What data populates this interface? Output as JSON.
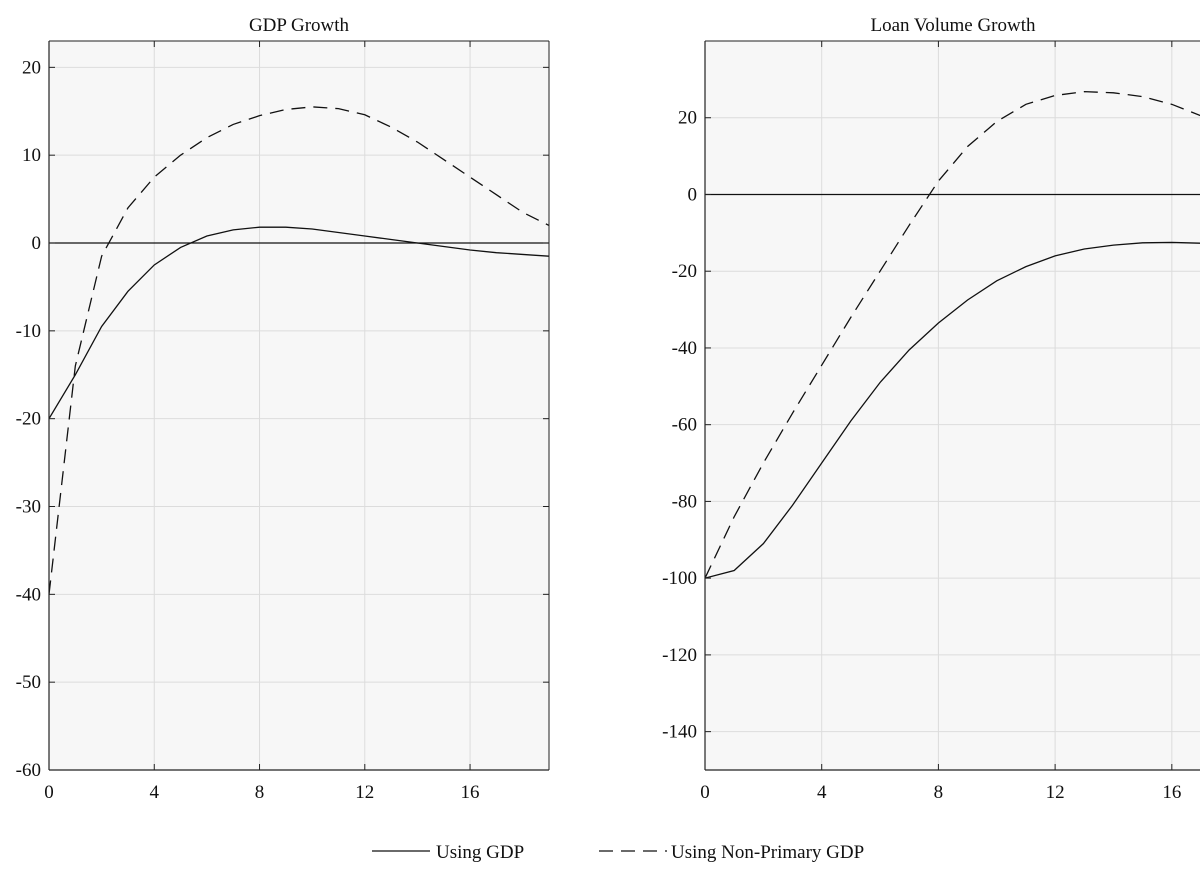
{
  "chart_data": [
    {
      "type": "line",
      "title": "GDP Growth",
      "xlabel": "",
      "ylabel": "",
      "xlim": [
        0,
        19
      ],
      "ylim": [
        -60,
        23
      ],
      "xticks": [
        0,
        4,
        8,
        12,
        16
      ],
      "yticks": [
        -60,
        -50,
        -40,
        -30,
        -20,
        -10,
        0,
        10,
        20
      ],
      "grid": true,
      "reference_line": 0,
      "series": [
        {
          "name": "Using GDP",
          "style": "solid",
          "x": [
            0,
            1,
            2,
            3,
            4,
            5,
            6,
            7,
            8,
            9,
            10,
            11,
            12,
            13,
            14,
            15,
            16,
            17,
            18,
            19
          ],
          "values": [
            -20,
            -15,
            -9.5,
            -5.5,
            -2.5,
            -0.5,
            0.8,
            1.5,
            1.8,
            1.8,
            1.6,
            1.2,
            0.8,
            0.4,
            0,
            -0.4,
            -0.8,
            -1.1,
            -1.3,
            -1.5
          ]
        },
        {
          "name": "Using Non-Primary GDP",
          "style": "dashed",
          "x": [
            0,
            1,
            2,
            3,
            4,
            5,
            6,
            7,
            8,
            9,
            10,
            11,
            12,
            13,
            14,
            15,
            16,
            17,
            18,
            19
          ],
          "values": [
            -40,
            -14,
            -1.5,
            4,
            7.5,
            10,
            12,
            13.5,
            14.5,
            15.2,
            15.5,
            15.3,
            14.6,
            13.2,
            11.5,
            9.5,
            7.5,
            5.5,
            3.5,
            2
          ]
        }
      ]
    },
    {
      "type": "line",
      "title": "Loan Volume Growth",
      "xlabel": "",
      "ylabel": "",
      "xlim": [
        0,
        17
      ],
      "ylim": [
        -150,
        40
      ],
      "xticks": [
        0,
        4,
        8,
        12,
        16
      ],
      "yticks": [
        -140,
        -120,
        -100,
        -80,
        -60,
        -40,
        -20,
        0,
        20
      ],
      "grid": true,
      "reference_line": 0,
      "series": [
        {
          "name": "Using GDP",
          "style": "solid",
          "x": [
            0,
            1,
            2,
            3,
            4,
            5,
            6,
            7,
            8,
            9,
            10,
            11,
            12,
            13,
            14,
            15,
            16,
            17
          ],
          "values": [
            -100,
            -98,
            -91,
            -81,
            -70,
            -59,
            -49,
            -40.5,
            -33.5,
            -27.5,
            -22.5,
            -18.8,
            -16,
            -14.2,
            -13.2,
            -12.6,
            -12.5,
            -12.7
          ]
        },
        {
          "name": "Using Non-Primary GDP",
          "style": "dashed",
          "x": [
            0,
            1,
            2,
            3,
            4,
            5,
            6,
            7,
            8,
            9,
            10,
            11,
            12,
            13,
            14,
            15,
            16,
            17
          ],
          "values": [
            -100,
            -84,
            -70,
            -57,
            -44.5,
            -32,
            -20,
            -8,
            3.5,
            12.5,
            19,
            23.5,
            25.8,
            26.8,
            26.5,
            25.5,
            23.5,
            20.5
          ]
        }
      ]
    }
  ],
  "legend": {
    "placement": "bottom-center",
    "entries": [
      {
        "label": "Using GDP",
        "style": "solid"
      },
      {
        "label": "Using Non-Primary GDP",
        "style": "dashed"
      }
    ]
  },
  "colors": {
    "line": "#111111",
    "plot_background": "#f7f7f7",
    "grid": "#dcdcdc",
    "axis": "#222222"
  }
}
